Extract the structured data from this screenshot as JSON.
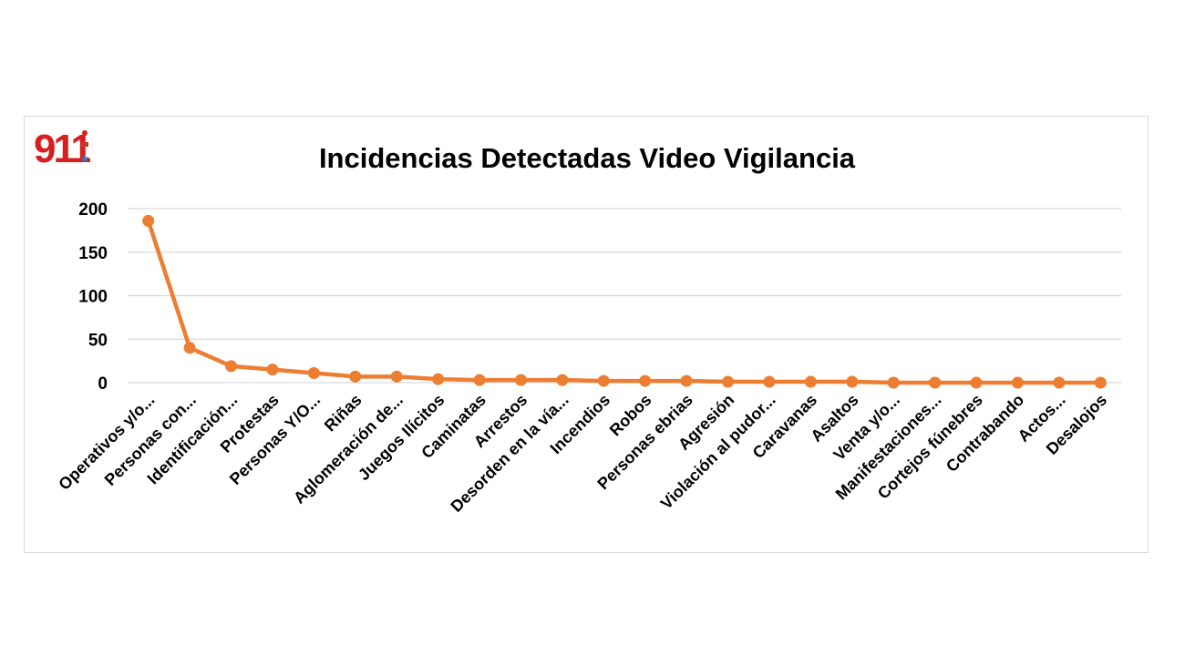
{
  "logo": {
    "text": "911",
    "icon": "emergency-911-logo"
  },
  "chart_data": {
    "type": "line",
    "title": "Incidencias Detectadas Video Vigilancia",
    "xlabel": "",
    "ylabel": "",
    "ylim": [
      0,
      200
    ],
    "yticks": [
      0,
      50,
      100,
      150,
      200
    ],
    "grid": true,
    "legend": "none",
    "categories": [
      "Operativos y/o...",
      "Personas con...",
      "Identificación...",
      "Protestas",
      "Personas Y/O...",
      "Riñas",
      "Aglomeración de...",
      "Juegos Ilícitos",
      "Caminatas",
      "Arrestos",
      "Desorden en la vía...",
      "Incendios",
      "Robos",
      "Personas ebrias",
      "Agresión",
      "Violación al pudor...",
      "Caravanas",
      "Asaltos",
      "Venta y/o...",
      "Manifestaciones...",
      "Cortejos fúnebres",
      "Contrabando",
      "Actos...",
      "Desalojos"
    ],
    "series": [
      {
        "values": [
          186,
          40,
          19,
          15,
          11,
          7,
          7,
          4,
          3,
          3,
          3,
          2,
          2,
          2,
          1,
          1,
          1,
          1,
          0,
          0,
          0,
          0,
          0,
          0
        ]
      }
    ],
    "colors": {
      "line": "#ED7D31",
      "grid": "#d9d9d9",
      "border": "#d9d9d9"
    }
  }
}
